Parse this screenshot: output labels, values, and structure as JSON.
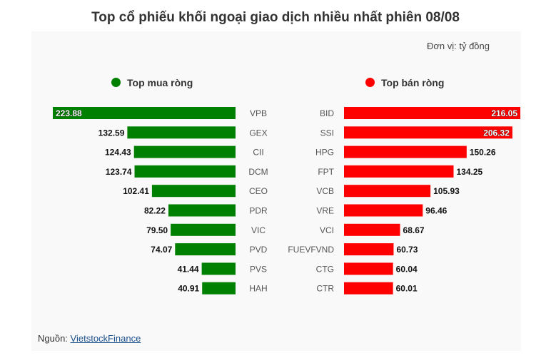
{
  "title": "Top cổ phiếu khối ngoại giao dịch nhiều nhất phiên 08/08",
  "unit": "Đơn vị: tỷ đồng",
  "source": {
    "label": "Nguồn:",
    "link": "VietstockFinance"
  },
  "colors": {
    "buy": "#008000",
    "sell": "#ff0000"
  },
  "chart_data": {
    "type": "bar",
    "unit": "tỷ đồng",
    "series": [
      {
        "name": "Top mua ròng",
        "categories": [
          "VPB",
          "GEX",
          "CII",
          "DCM",
          "CEO",
          "PDR",
          "VIC",
          "PVD",
          "PVS",
          "HAH"
        ],
        "values": [
          223.88,
          132.59,
          124.43,
          123.74,
          102.41,
          82.22,
          79.5,
          74.07,
          41.44,
          40.91
        ]
      },
      {
        "name": "Top bán ròng",
        "categories": [
          "BID",
          "SSI",
          "HPG",
          "FPT",
          "VCB",
          "VRE",
          "VCI",
          "FUEVFVND",
          "CTG",
          "CTR"
        ],
        "values": [
          216.05,
          206.32,
          150.26,
          134.25,
          105.93,
          96.46,
          68.67,
          60.73,
          60.04,
          60.01
        ]
      }
    ]
  }
}
